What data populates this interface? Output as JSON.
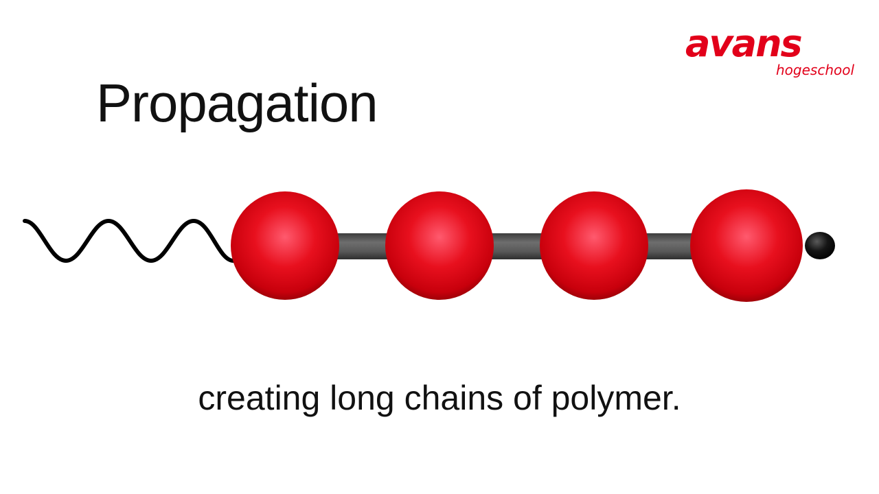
{
  "logo": {
    "word": "avans",
    "sub": "hogeschool",
    "color": "#e2001a"
  },
  "title": "Propagation",
  "caption": "creating long chains of polymer.",
  "diagram": {
    "bead_count": 4,
    "bead_color": "#e0101a",
    "bond_color": "#555555",
    "end_group_color": "#111111",
    "tail": "wavy-line"
  }
}
